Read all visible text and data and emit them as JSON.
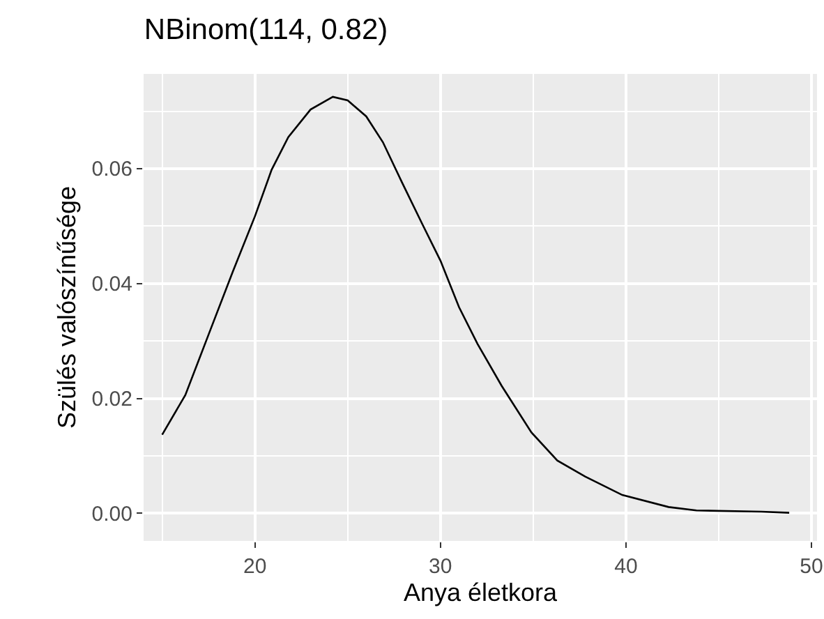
{
  "chart_data": {
    "type": "line",
    "title": "NBinom(114, 0.82)",
    "xlabel": "Anya életkora",
    "ylabel": "Szülés valószínűsége",
    "series": [
      {
        "color": "#000000",
        "x": [
          15,
          16.25,
          17.5,
          18.8,
          20,
          20.9,
          21.8,
          23,
          24.2,
          25,
          26,
          26.9,
          27.9,
          29,
          30,
          31,
          32,
          33.3,
          34.9,
          36.3,
          37.8,
          39.8,
          42.3,
          43.8,
          47.3,
          48.8
        ],
        "values": [
          0.0137,
          0.0206,
          0.0311,
          0.042,
          0.0517,
          0.0598,
          0.0655,
          0.0703,
          0.0725,
          0.0719,
          0.0691,
          0.0646,
          0.0578,
          0.0505,
          0.044,
          0.0359,
          0.0295,
          0.0222,
          0.0141,
          0.0092,
          0.0064,
          0.0032,
          0.0011,
          0.0005,
          0.0003,
          0.0001
        ]
      }
    ],
    "xlim": [
      14,
      50.3
    ],
    "xticks": [
      20,
      30,
      40,
      50
    ],
    "ylim": [
      -0.0048,
      0.0765
    ],
    "yticks": [
      {
        "value": 0,
        "label": "0.00"
      },
      {
        "value": 0.02,
        "label": "0.02"
      },
      {
        "value": 0.04,
        "label": "0.04"
      },
      {
        "value": 0.06,
        "label": "0.06"
      }
    ],
    "grid": true,
    "marker": "none",
    "line_style": "solid"
  }
}
